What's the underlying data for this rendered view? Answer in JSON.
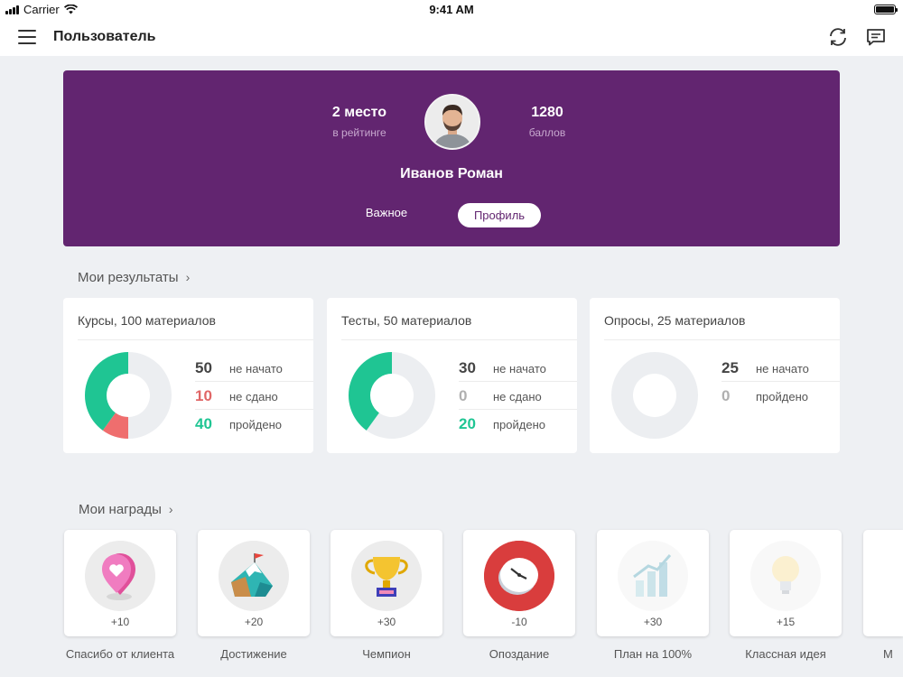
{
  "status_bar": {
    "carrier": "Carrier",
    "time": "9:41 AM"
  },
  "header": {
    "title": "Пользователь",
    "icons": [
      "menu-icon",
      "refresh-icon",
      "chat-icon"
    ]
  },
  "profile": {
    "rank_value": "2 место",
    "rank_caption": "в рейтинге",
    "points_value": "1280",
    "points_caption": "баллов",
    "name": "Иванов Роман",
    "tabs": [
      {
        "label": "Важное",
        "active": false
      },
      {
        "label": "Профиль",
        "active": true
      }
    ],
    "banner_color": "#622570"
  },
  "results": {
    "section_title": "Мои результаты",
    "cards": [
      {
        "title": "Курсы, 100 материалов",
        "rows": [
          {
            "value": "50",
            "label": "не начато",
            "color": "#444444"
          },
          {
            "value": "10",
            "label": "не сдано",
            "color": "#e06666"
          },
          {
            "value": "40",
            "label": "пройдено",
            "color": "#1fc593"
          }
        ],
        "segments": [
          {
            "share": 0.5,
            "color": "#eceef1"
          },
          {
            "share": 0.1,
            "color": "#ef6e6e"
          },
          {
            "share": 0.4,
            "color": "#1fc593"
          }
        ]
      },
      {
        "title": "Тесты, 50 материалов",
        "rows": [
          {
            "value": "30",
            "label": "не начато",
            "color": "#444444"
          },
          {
            "value": "0",
            "label": "не сдано",
            "color": "#b0b0b0"
          },
          {
            "value": "20",
            "label": "пройдено",
            "color": "#1fc593"
          }
        ],
        "segments": [
          {
            "share": 0.6,
            "color": "#eceef1"
          },
          {
            "share": 0.0,
            "color": "#ef6e6e"
          },
          {
            "share": 0.4,
            "color": "#1fc593"
          }
        ]
      },
      {
        "title": "Опросы, 25 материалов",
        "rows": [
          {
            "value": "25",
            "label": "не начато",
            "color": "#444444"
          },
          {
            "value": "0",
            "label": "пройдено",
            "color": "#b0b0b0"
          }
        ],
        "segments": [
          {
            "share": 1.0,
            "color": "#eceef1"
          }
        ]
      }
    ]
  },
  "awards": {
    "section_title": "Мои награды",
    "items": [
      {
        "points": "+10",
        "name": "Спасибо от клиента",
        "icon": "heart-pin-icon",
        "faded": false
      },
      {
        "points": "+20",
        "name": "Достижение",
        "icon": "mountain-flag-icon",
        "faded": false
      },
      {
        "points": "+30",
        "name": "Чемпион",
        "icon": "trophy-icon",
        "faded": false
      },
      {
        "points": "-10",
        "name": "Опоздание",
        "icon": "clock-icon",
        "faded": false
      },
      {
        "points": "+30",
        "name": "План на 100%",
        "icon": "growth-chart-icon",
        "faded": true
      },
      {
        "points": "+15",
        "name": "Классная идея",
        "icon": "lightbulb-icon",
        "faded": true
      },
      {
        "points": "",
        "name": "М",
        "icon": "",
        "faded": false
      }
    ]
  }
}
